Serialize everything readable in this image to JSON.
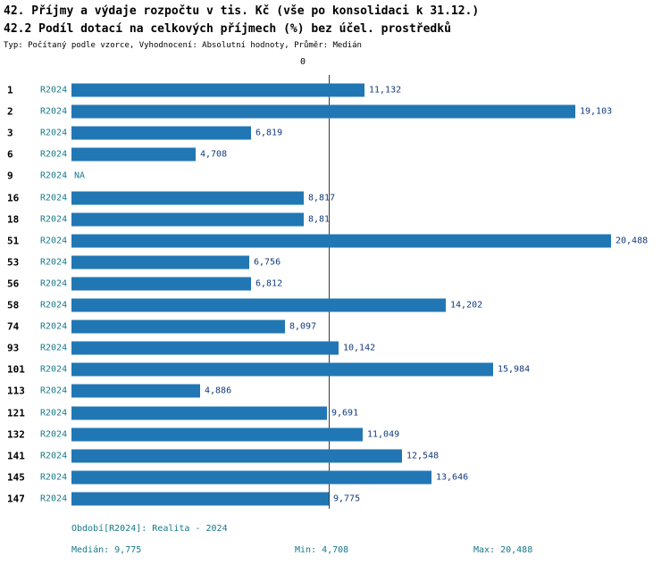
{
  "title_line1": "42. Příjmy a výdaje rozpočtu v tis. Kč (vše po konsolidaci k 31.12.)",
  "title_line2": "42.2 Podíl dotací na celkových příjmech (%) bez účel. prostředků",
  "subtitle": "Typ: Počítaný podle vzorce, Vyhodnocení: Absolutní hodnoty, Průměr: Medián",
  "axis": {
    "zero_label": "0"
  },
  "colors": {
    "bar": "#2177b4",
    "value_label": "#113a7d",
    "series_label": "#17798a",
    "footer_text": "#17798a",
    "median_line": "#3a3a3a"
  },
  "chart_data": {
    "type": "bar",
    "orientation": "horizontal",
    "title": "42.2 Podíl dotací na celkových příjmech (%) bez účel. prostředků",
    "series_label": "R2024",
    "categories": [
      "1",
      "2",
      "3",
      "6",
      "9",
      "16",
      "18",
      "51",
      "53",
      "56",
      "58",
      "74",
      "93",
      "101",
      "113",
      "121",
      "132",
      "141",
      "145",
      "147"
    ],
    "values": [
      11.132,
      19.103,
      6.819,
      4.708,
      null,
      8.817,
      8.81,
      20.488,
      6.756,
      6.812,
      14.202,
      8.097,
      10.142,
      15.984,
      4.886,
      9.691,
      11.049,
      12.548,
      13.646,
      9.775
    ],
    "value_labels": [
      "11,132",
      "19,103",
      "6,819",
      "4,708",
      "NA",
      "8,817",
      "8,81",
      "20,488",
      "6,756",
      "6,812",
      "14,202",
      "8,097",
      "10,142",
      "15,984",
      "4,886",
      "9,691",
      "11,049",
      "12,548",
      "13,646",
      "9,775"
    ],
    "na_label": "NA",
    "median": 9.775,
    "min": 4.708,
    "max": 20.488,
    "xlim": [
      0,
      20.5
    ],
    "grid": false,
    "legend": "none",
    "median_line": true
  },
  "footer": {
    "period": "Období[R2024]: Realita - 2024",
    "median": "Medián: 9,775",
    "min": "Min: 4,708",
    "max": "Max: 20,488"
  }
}
